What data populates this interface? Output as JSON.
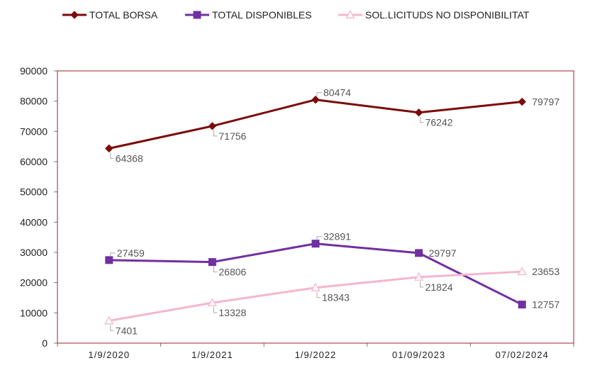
{
  "chart_data": {
    "type": "line",
    "categories": [
      "1/9/2020",
      "1/9/2021",
      "1/9/2022",
      "01/09/2023",
      "07/02/2024"
    ],
    "ylim": [
      0,
      90000
    ],
    "yticks": [
      0,
      10000,
      20000,
      30000,
      40000,
      50000,
      60000,
      70000,
      80000,
      90000
    ],
    "grid": false,
    "legend_position": "top",
    "series": [
      {
        "name": "TOTAL BORSA",
        "values": [
          64368,
          71756,
          80474,
          76242,
          79797
        ],
        "color": "#7b0a0a",
        "marker": "diamond",
        "labels": [
          "64368",
          "71756",
          "80474",
          "76242",
          "79797"
        ]
      },
      {
        "name": "TOTAL DISPONIBLES",
        "values": [
          27459,
          26806,
          32891,
          29797,
          12757
        ],
        "color": "#7030a0",
        "marker": "square",
        "labels": [
          "27459",
          "26806",
          "32891",
          "29797",
          "12757"
        ]
      },
      {
        "name": "SOL.LICITUDS NO DISPONIBILITAT",
        "values": [
          7401,
          13328,
          18343,
          21824,
          23653
        ],
        "color": "#f4b6cf",
        "marker": "triangle",
        "labels": [
          "7401",
          "13328",
          "18343",
          "21824",
          "23653"
        ]
      }
    ],
    "plot_border_color": "#a0202a"
  }
}
